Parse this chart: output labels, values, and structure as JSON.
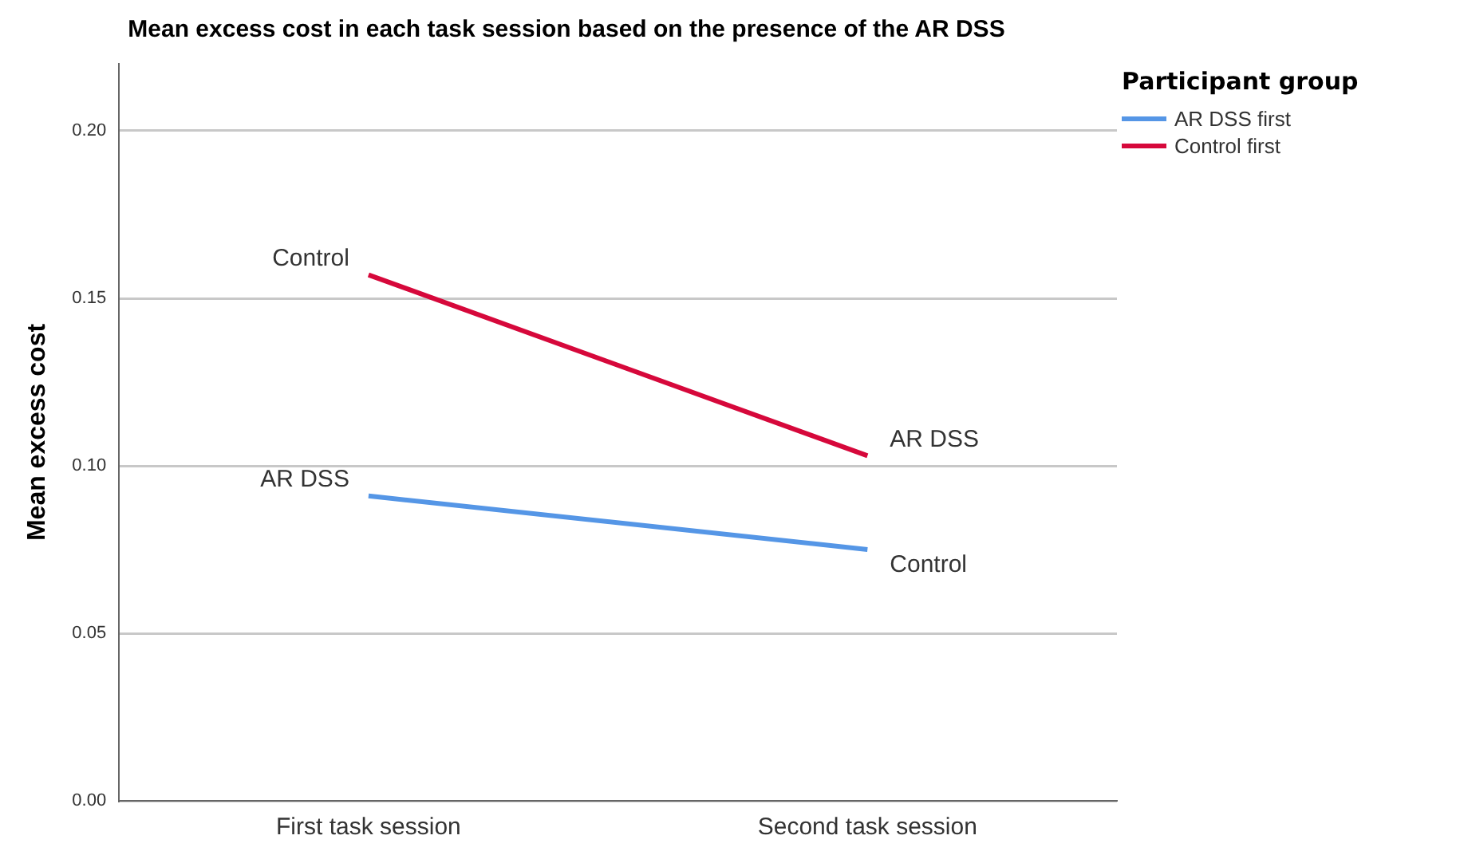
{
  "chart_data": {
    "type": "line",
    "title": "Mean excess cost in each task session based on the presence of the AR DSS",
    "ylabel": "Mean excess cost",
    "legend_title": "Participant group",
    "categories": [
      "First task session",
      "Second task session"
    ],
    "series": [
      {
        "name": "AR DSS first",
        "color": "#5596e6",
        "values": [
          0.091,
          0.075
        ]
      },
      {
        "name": "Control first",
        "color": "#d6083b",
        "values": [
          0.157,
          0.103
        ]
      }
    ],
    "ylim": [
      0,
      0.22
    ],
    "yticks": [
      {
        "value": 0,
        "label": "0.00"
      },
      {
        "value": 0.05,
        "label": "0.05"
      },
      {
        "value": 0.1,
        "label": "0.10"
      },
      {
        "value": 0.15,
        "label": "0.15"
      },
      {
        "value": 0.2,
        "label": "0.20"
      }
    ],
    "grid": "y",
    "legend": "top right",
    "marker": "none",
    "line_style": "solid",
    "annotations": [
      {
        "text": "AR DSS",
        "x": "First task session",
        "y": 0.091
      },
      {
        "text": "Control",
        "x": "Second task session",
        "y": 0.075
      },
      {
        "text": "Control",
        "x": "First task session",
        "y": 0.157
      },
      {
        "text": "AR DSS",
        "x": "Second task session",
        "y": 0.103
      }
    ]
  }
}
